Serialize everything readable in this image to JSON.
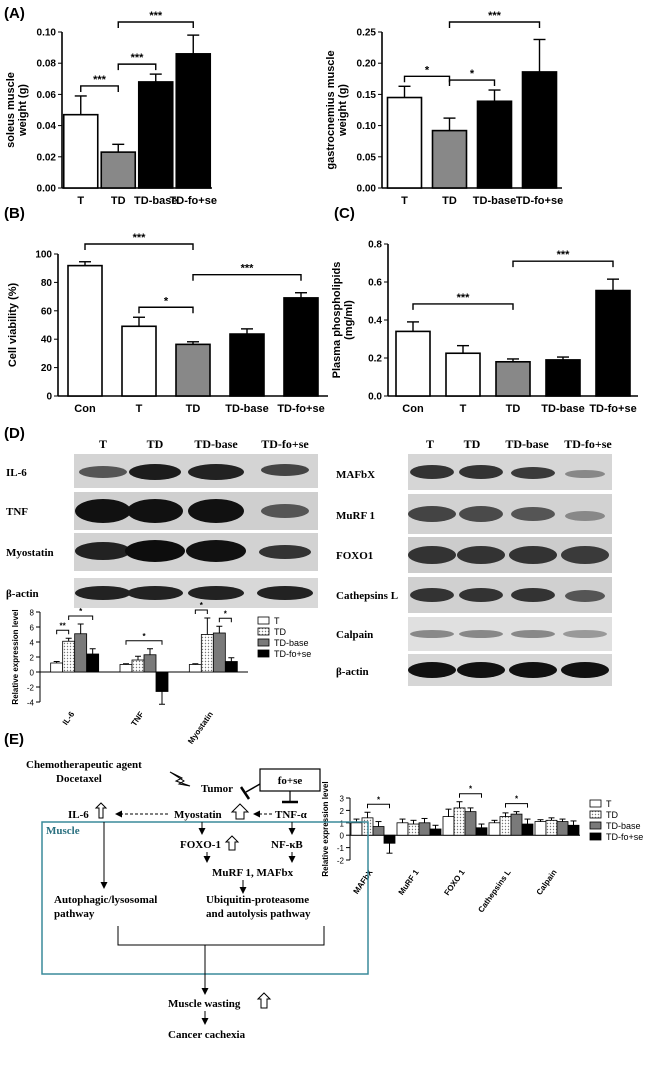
{
  "panels": {
    "A": "(A)",
    "B": "(B)",
    "C": "(C)",
    "D": "(D)",
    "E": "(E)"
  },
  "chart_data": [
    {
      "id": "A1",
      "type": "bar",
      "categories": [
        "T",
        "TD",
        "TD-base",
        "TD-fo+se"
      ],
      "values": [
        0.047,
        0.023,
        0.068,
        0.086
      ],
      "errors": [
        0.012,
        0.005,
        0.005,
        0.012
      ],
      "colors": [
        "#ffffff",
        "#888888",
        "#000000",
        "#000000"
      ],
      "ylabel": "soleus muscle weight (g)",
      "ylim": [
        0,
        0.1
      ],
      "yticks": [
        "0.00",
        "0.02",
        "0.04",
        "0.06",
        "0.08",
        "0.10"
      ],
      "significance": [
        {
          "from": 0,
          "to": 1,
          "label": "***"
        },
        {
          "from": 1,
          "to": 2,
          "label": "***"
        },
        {
          "from": 1,
          "to": 3,
          "label": "***"
        }
      ]
    },
    {
      "id": "A2",
      "type": "bar",
      "categories": [
        "T",
        "TD",
        "TD-base",
        "TD-fo+se"
      ],
      "values": [
        0.145,
        0.092,
        0.139,
        0.186
      ],
      "errors": [
        0.018,
        0.02,
        0.018,
        0.052
      ],
      "colors": [
        "#ffffff",
        "#888888",
        "#000000",
        "#000000"
      ],
      "ylabel": "gastrocnemius muscle weight (g)",
      "ylim": [
        0,
        0.25
      ],
      "yticks": [
        "0.00",
        "0.05",
        "0.10",
        "0.15",
        "0.20",
        "0.25"
      ],
      "significance": [
        {
          "from": 0,
          "to": 1,
          "label": "*"
        },
        {
          "from": 1,
          "to": 2,
          "label": "*"
        },
        {
          "from": 1,
          "to": 3,
          "label": "***"
        }
      ]
    },
    {
      "id": "B",
      "type": "bar",
      "categories": [
        "Con",
        "T",
        "TD",
        "TD-base",
        "TD-fo+se"
      ],
      "values": [
        101,
        54,
        40,
        48,
        76
      ],
      "errors": [
        3,
        7,
        2,
        4,
        4
      ],
      "colors": [
        "#ffffff",
        "#ffffff",
        "#888888",
        "#000000",
        "#000000"
      ],
      "ylabel": "Cell viability (%)",
      "ylim": [
        0,
        110
      ],
      "yticks": [
        "0",
        "20",
        "40",
        "60",
        "80",
        "100"
      ],
      "significance": [
        {
          "from": 0,
          "to": 2,
          "label": "***"
        },
        {
          "from": 1,
          "to": 2,
          "label": "*"
        },
        {
          "from": 2,
          "to": 4,
          "label": "***"
        }
      ]
    },
    {
      "id": "C",
      "type": "bar",
      "categories": [
        "Con",
        "T",
        "TD",
        "TD-base",
        "TD-fo+se"
      ],
      "values": [
        0.34,
        0.225,
        0.18,
        0.19,
        0.555
      ],
      "errors": [
        0.05,
        0.04,
        0.015,
        0.015,
        0.06
      ],
      "colors": [
        "#ffffff",
        "#ffffff",
        "#888888",
        "#000000",
        "#000000"
      ],
      "ylabel": "Plasma phospholipids (mg/ml)",
      "ylim": [
        0,
        0.8
      ],
      "yticks": [
        "0.0",
        "0.2",
        "0.4",
        "0.6",
        "0.8"
      ],
      "significance": [
        {
          "from": 0,
          "to": 2,
          "label": "***"
        },
        {
          "from": 2,
          "to": 4,
          "label": "***"
        }
      ]
    },
    {
      "id": "D1",
      "type": "bar",
      "categories": [
        "IL-6",
        "TNF",
        "Myostatin"
      ],
      "series": [
        {
          "name": "T",
          "values": [
            1.2,
            1.0,
            1.0
          ],
          "errors": [
            0.2,
            0.1,
            0.1
          ]
        },
        {
          "name": "TD",
          "values": [
            4.1,
            1.6,
            5.0
          ],
          "errors": [
            0.4,
            0.5,
            2.2
          ]
        },
        {
          "name": "TD-base",
          "values": [
            5.1,
            2.3,
            5.2
          ],
          "errors": [
            1.3,
            0.8,
            0.9
          ]
        },
        {
          "name": "TD-fo+se",
          "values": [
            2.4,
            -2.6,
            1.4
          ],
          "errors": [
            0.7,
            1.7,
            0.5
          ]
        }
      ],
      "ylabel": "Relative expression level",
      "ylim": [
        -4,
        8
      ],
      "yticks": [
        "-4",
        "-2",
        "0",
        "2",
        "4",
        "6",
        "8"
      ],
      "significance": [
        {
          "group": 0,
          "from": 0,
          "to": 1,
          "label": "**"
        },
        {
          "group": 0,
          "from": 1,
          "to": 3,
          "label": "*"
        },
        {
          "group": 1,
          "from": 0,
          "to": 3,
          "label": "*"
        },
        {
          "group": 2,
          "from": 0,
          "to": 1,
          "label": "*"
        },
        {
          "group": 2,
          "from": 2,
          "to": 3,
          "label": "*"
        }
      ]
    },
    {
      "id": "D2",
      "type": "bar",
      "categories": [
        "MAFbX",
        "MuRF 1",
        "FOXO 1",
        "Cathepsins L",
        "Calpain"
      ],
      "series": [
        {
          "name": "T",
          "values": [
            1.0,
            1.0,
            1.5,
            1.0,
            1.1
          ],
          "errors": [
            0.3,
            0.3,
            0.6,
            0.2,
            0.15
          ]
        },
        {
          "name": "TD",
          "values": [
            1.4,
            0.9,
            2.2,
            1.5,
            1.2
          ],
          "errors": [
            0.45,
            0.3,
            0.5,
            0.3,
            0.2
          ]
        },
        {
          "name": "TD-base",
          "values": [
            0.7,
            1.0,
            1.9,
            1.7,
            1.1
          ],
          "errors": [
            0.4,
            0.35,
            0.3,
            0.2,
            0.2
          ]
        },
        {
          "name": "TD-fo+se",
          "values": [
            -0.65,
            0.5,
            0.6,
            0.9,
            0.8
          ],
          "errors": [
            0.8,
            0.3,
            0.3,
            0.4,
            0.35
          ]
        }
      ],
      "ylabel": "Relative expression level",
      "ylim": [
        -2,
        3
      ],
      "yticks": [
        "-2",
        "-1",
        "0",
        "1",
        "2",
        "3"
      ],
      "significance": [
        {
          "group": 0,
          "from": 1,
          "to": 3,
          "label": "*"
        },
        {
          "group": 2,
          "from": 1,
          "to": 3,
          "label": "*"
        },
        {
          "group": 3,
          "from": 1,
          "to": 3,
          "label": "*"
        }
      ]
    }
  ],
  "blots": {
    "left": {
      "lanes": [
        "T",
        "TD",
        "TD-base",
        "TD-fo+se"
      ],
      "rows": [
        "IL-6",
        "TNF",
        "Myostatin",
        "β-actin"
      ]
    },
    "right": {
      "lanes": [
        "T",
        "TD",
        "TD-base",
        "TD-fo+se"
      ],
      "rows": [
        "MAFbX",
        "MuRF 1",
        "FOXO1",
        "Cathepsins L",
        "Calpain",
        "β-actin"
      ]
    }
  },
  "diagram": {
    "agent": "Chemotherapeutic agent",
    "drug": "Docetaxel",
    "tumor": "Tumor",
    "foSe": "fo+se",
    "il6": "IL-6",
    "myostatin": "Myostatin",
    "tnf": "TNF-α",
    "muscle": "Muscle",
    "foxo": "FOXO-1",
    "nfkb": "NF-κB",
    "murf": "MuRF 1, MAFbx",
    "auto1": "Autophagic/lysosomal",
    "auto2": "pathway",
    "ubi1": "Ubiquitin-proteasome",
    "ubi2": "and autolysis pathway",
    "wasting": "Muscle wasting",
    "cachexia": "Cancer cachexia"
  }
}
